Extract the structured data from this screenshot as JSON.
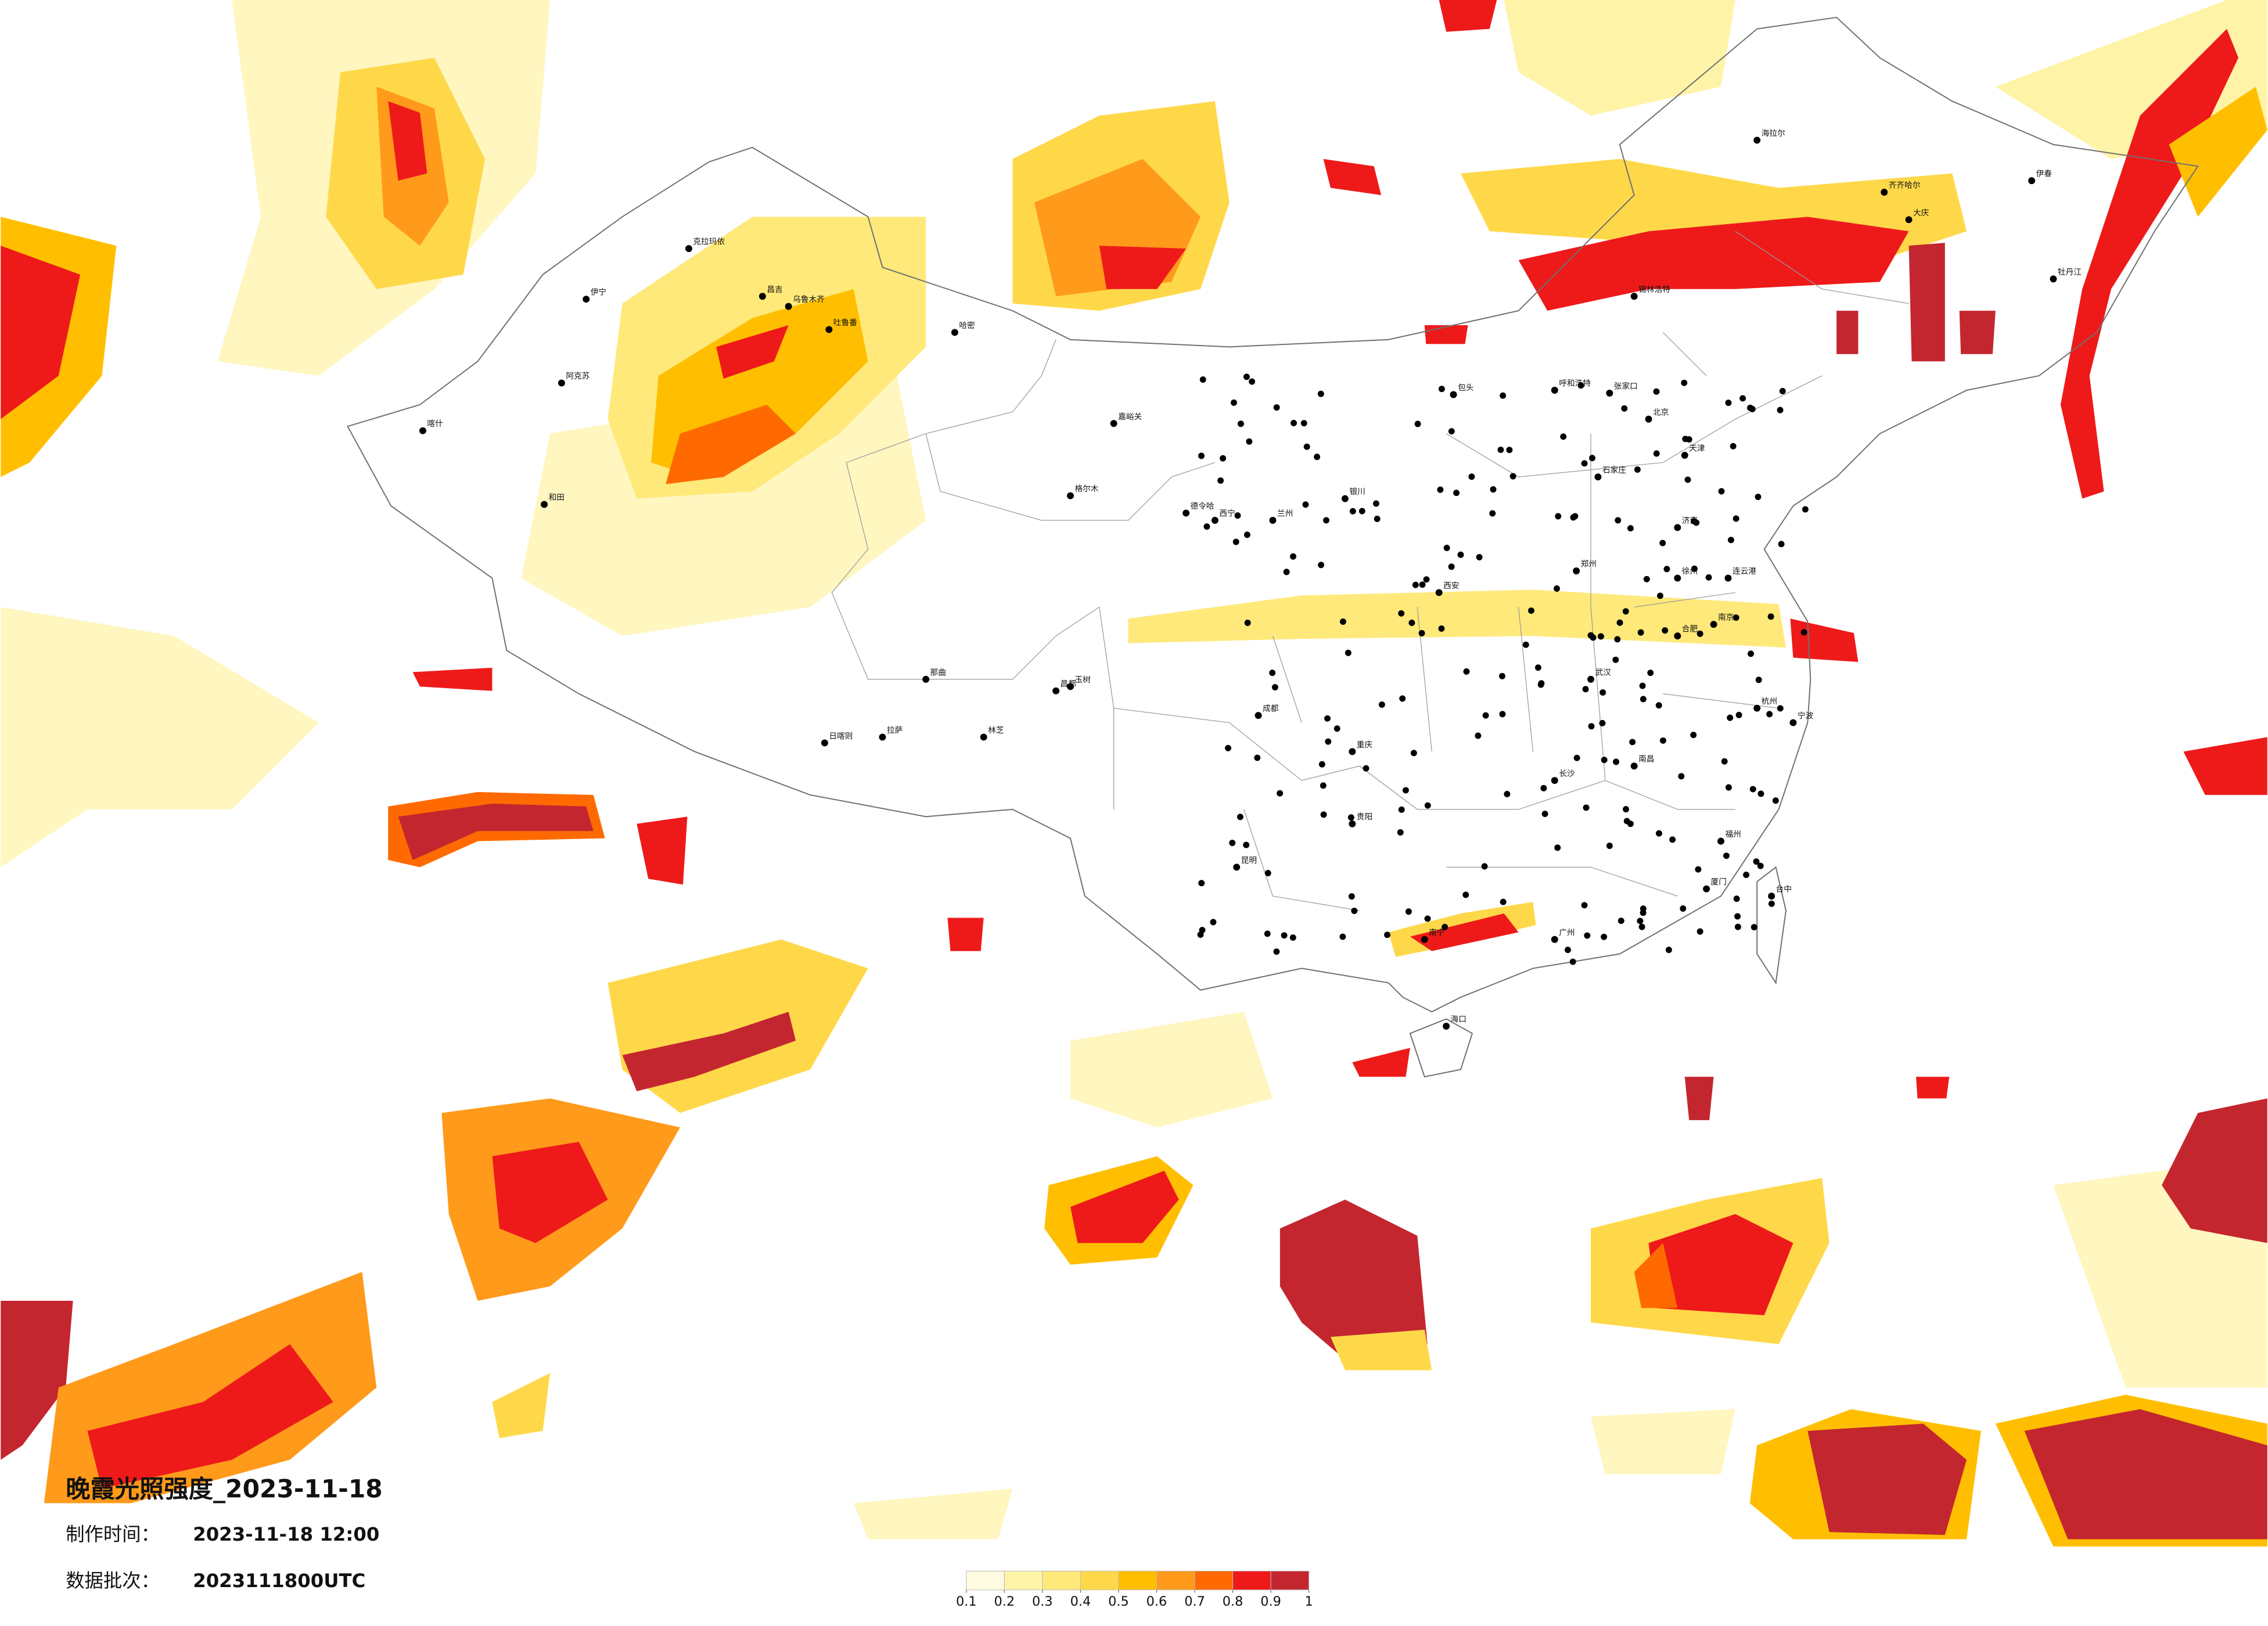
{
  "title": "晚霞光照强度_2023-11-18",
  "made_label": "制作时间：",
  "made_time": "2023-11-18 12:00",
  "batch_label": "数据批次：",
  "batch": "2023111800UTC",
  "colorbar": {
    "colors": [
      "#fffbe0",
      "#fff3a8",
      "#ffe97a",
      "#ffd84a",
      "#ffbf00",
      "#ff9a1a",
      "#ff6a00",
      "#ee1a1a",
      "#c4262f"
    ],
    "ticks": [
      0.1,
      0.2,
      0.3,
      0.4,
      0.5,
      0.6,
      0.7,
      0.8,
      0.9,
      1
    ]
  },
  "cities": [
    "克拉玛依",
    "伊宁",
    "阿克苏",
    "喀什",
    "和田",
    "昌吉",
    "乌鲁木齐",
    "吐鲁番",
    "哈密",
    "嘉峪关",
    "格尔木",
    "德令哈",
    "玉树",
    "那曲",
    "日喀则",
    "拉萨",
    "林芝",
    "昌都",
    "海拉尔",
    "齐齐哈尔",
    "大庆",
    "伊春",
    "牡丹江",
    "锡林浩特",
    "呼和浩特",
    "包头",
    "张家口",
    "北京",
    "天津",
    "石家庄",
    "济南",
    "郑州",
    "西安",
    "兰州",
    "西宁",
    "银川",
    "成都",
    "重庆",
    "武汉",
    "长沙",
    "南昌",
    "合肥",
    "南京",
    "杭州",
    "福州",
    "厦门",
    "广州",
    "南宁",
    "昆明",
    "贵阳",
    "海口",
    "台中",
    "徐州",
    "连云港",
    "宁波"
  ]
}
